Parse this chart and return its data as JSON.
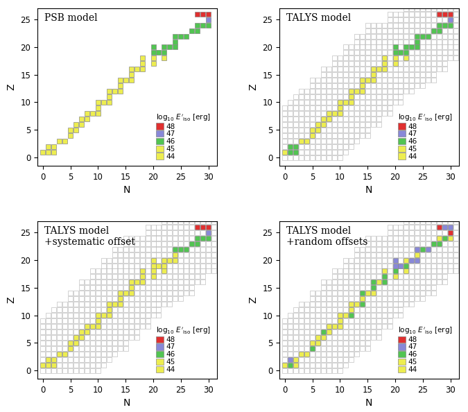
{
  "colors": {
    "44": "#eded50",
    "45": "#eded50",
    "46": "#52c452",
    "47": "#8888d8",
    "48": "#e03030",
    "outline_edge": "#b0b0b0",
    "cell_edge": "#888888"
  },
  "legend_labels": [
    "48",
    "47",
    "46",
    "45",
    "44"
  ],
  "legend_facecolors": [
    "#e03030",
    "#8888d8",
    "#52c452",
    "#eded50",
    "#eded50"
  ],
  "panel_titles": [
    "PSB model",
    "TALYS model",
    "TALYS model\n+systematic offset",
    "TALYS model\n+random offsets"
  ],
  "xlabel": "N",
  "ylabel": "Z",
  "xlim": [
    -1.0,
    31.5
  ],
  "ylim": [
    -1.5,
    27.0
  ],
  "xticks": [
    0,
    5,
    10,
    15,
    20,
    25,
    30
  ],
  "yticks": [
    0,
    5,
    10,
    15,
    20,
    25
  ],
  "cell_size": 0.88
}
